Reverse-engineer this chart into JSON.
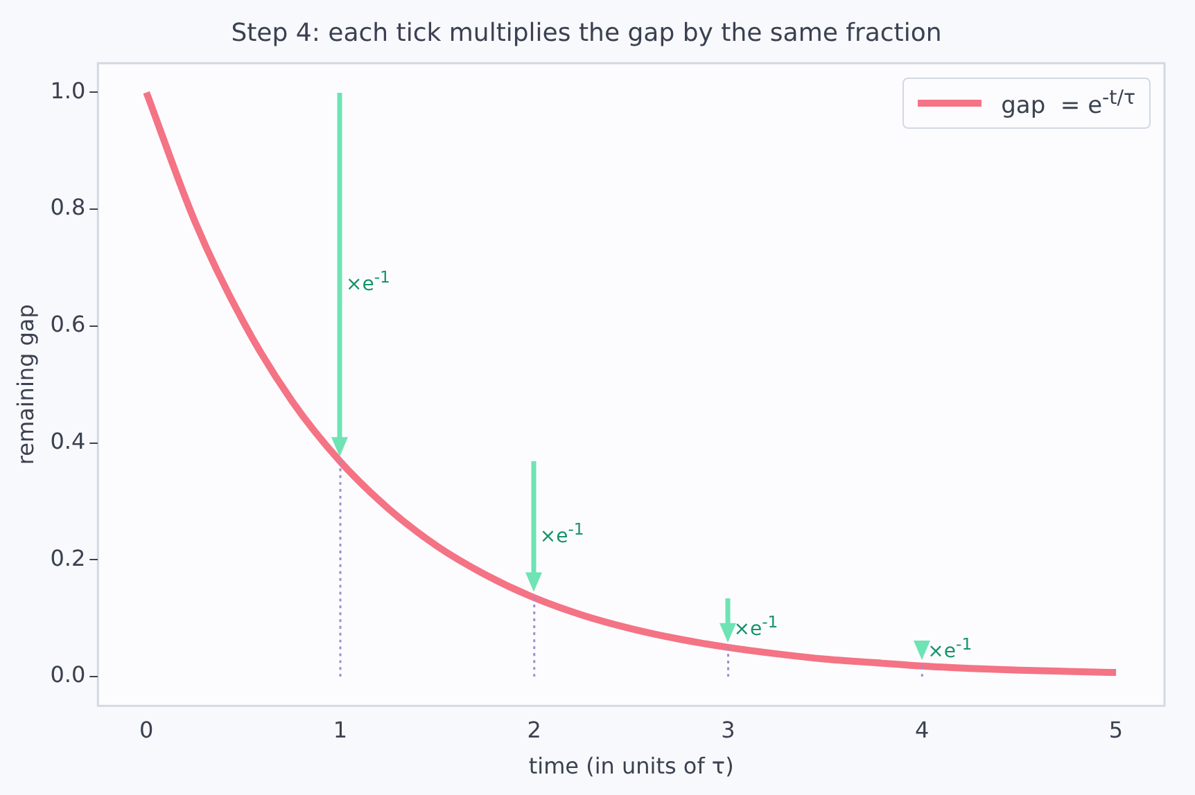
{
  "chart_data": {
    "type": "line",
    "title": "Step 4: each tick multiplies the gap by the same fraction",
    "xlabel": "time (in units of τ)",
    "ylabel": "remaining gap",
    "x": [
      0,
      0.25,
      0.5,
      0.75,
      1,
      1.25,
      1.5,
      1.75,
      2,
      2.25,
      2.5,
      2.75,
      3,
      3.25,
      3.5,
      3.75,
      4,
      4.25,
      4.5,
      4.75,
      5
    ],
    "series": [
      {
        "name": "gap  = e$^{-t/τ}$",
        "color": "#f47384",
        "values": [
          1,
          0.779,
          0.607,
          0.472,
          0.368,
          0.287,
          0.223,
          0.174,
          0.135,
          0.105,
          0.082,
          0.064,
          0.05,
          0.039,
          0.03,
          0.024,
          0.018,
          0.014,
          0.011,
          0.009,
          0.007
        ]
      },
      {
        "type": "line",
        "color": "#a08cd0",
        "line_style": "dotted",
        "x": [
          1,
          1
        ],
        "values": [
          0,
          0.368
        ]
      },
      {
        "type": "line",
        "color": "#a08cd0",
        "line_style": "dotted",
        "x": [
          2,
          2
        ],
        "values": [
          0,
          0.135
        ]
      },
      {
        "type": "line",
        "color": "#a08cd0",
        "line_style": "dotted",
        "x": [
          3,
          3
        ],
        "values": [
          0,
          0.05
        ]
      },
      {
        "type": "line",
        "color": "#a08cd0",
        "line_style": "dotted",
        "x": [
          4,
          4
        ],
        "values": [
          0,
          0.018
        ]
      }
    ],
    "annotations": [
      "×e$^{-1}$",
      "×e$^{-1}$",
      "×e$^{-1}$",
      "×e$^{-1}$"
    ],
    "xlim": [
      -0.25,
      5.25
    ],
    "xticks": [
      0,
      1,
      2,
      3,
      4,
      5
    ],
    "ylim": [
      -0.05,
      1.05
    ],
    "yticks": [
      {
        "value": 0,
        "label": "0.0"
      },
      0.2,
      0.4,
      0.6,
      0.8,
      {
        "value": 1,
        "label": "1.0"
      }
    ],
    "grid": false,
    "legend": "top right",
    "marker": "none",
    "line_style": "solid"
  }
}
